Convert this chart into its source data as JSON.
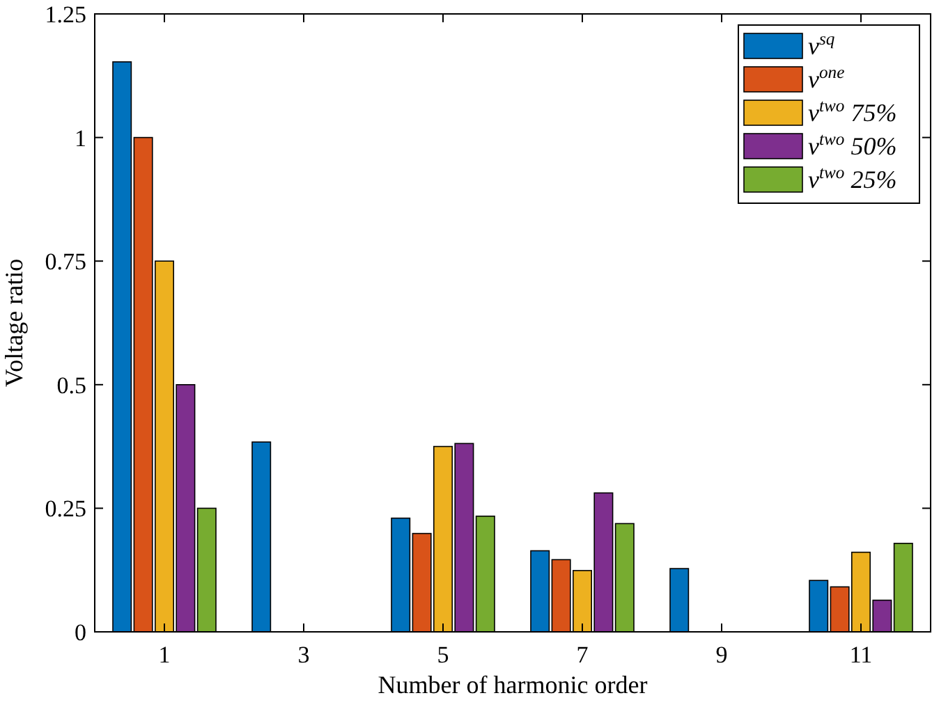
{
  "chart_data": {
    "type": "bar",
    "xlabel": "Number of harmonic order",
    "ylabel": "Voltage ratio",
    "categories": [
      "1",
      "3",
      "5",
      "7",
      "9",
      "11"
    ],
    "series": [
      {
        "name": "v$^{sq}$",
        "color": "#0072bd",
        "values": [
          1.153,
          0.384,
          0.23,
          0.164,
          0.128,
          0.104
        ]
      },
      {
        "name": "v$^{one}$",
        "color": "#d95319",
        "values": [
          1.0,
          0,
          0.199,
          0.146,
          0,
          0.091
        ]
      },
      {
        "name": "v$^{two}$ 75%",
        "color": "#edb120",
        "values": [
          0.75,
          0,
          0.375,
          0.124,
          0,
          0.161
        ]
      },
      {
        "name": "v$^{two}$ 50%",
        "color": "#7e2f8e",
        "values": [
          0.5,
          0,
          0.381,
          0.281,
          0,
          0.064
        ]
      },
      {
        "name": "v$^{two}$ 25%",
        "color": "#77ac30",
        "values": [
          0.25,
          0,
          0.234,
          0.219,
          0,
          0.179
        ]
      }
    ],
    "ylim": [
      0,
      1.25
    ],
    "yticks": [
      0,
      0.25,
      0.5,
      0.75,
      1,
      1.25
    ],
    "legend": "top right"
  }
}
